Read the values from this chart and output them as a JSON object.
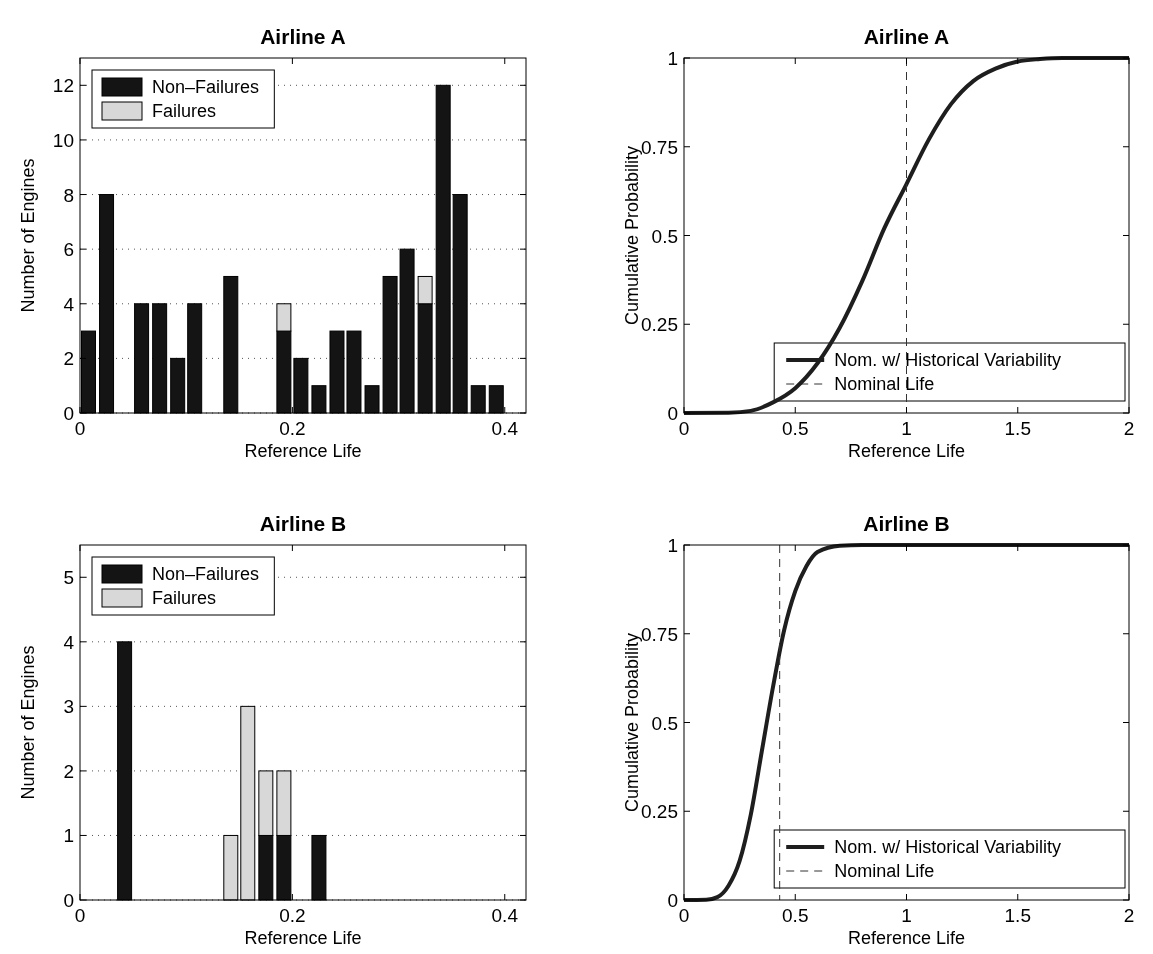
{
  "chart_data": [
    {
      "type": "bar",
      "title": "Airline A",
      "xlabel": "Reference Life",
      "ylabel": "Number of Engines",
      "stacked": true,
      "x": [
        0.008,
        0.025,
        0.042,
        0.058,
        0.075,
        0.092,
        0.108,
        0.125,
        0.142,
        0.158,
        0.175,
        0.192,
        0.208,
        0.225,
        0.242,
        0.258,
        0.275,
        0.292,
        0.308,
        0.325,
        0.342,
        0.358,
        0.375,
        0.392
      ],
      "series": [
        {
          "name": "Non–Failures",
          "color": "#141414",
          "values": [
            3,
            8,
            null,
            4,
            4,
            2,
            4,
            null,
            5,
            null,
            null,
            3,
            2,
            1,
            3,
            3,
            1,
            5,
            6,
            4,
            12,
            8,
            1,
            1
          ]
        },
        {
          "name": "Failures",
          "color": "#d8d8d8",
          "values": [
            null,
            null,
            null,
            null,
            null,
            null,
            null,
            null,
            null,
            null,
            null,
            1,
            null,
            null,
            null,
            null,
            null,
            null,
            null,
            1,
            null,
            null,
            null,
            null
          ]
        }
      ],
      "xlim": [
        0,
        0.42
      ],
      "xticks": [
        0,
        0.2,
        0.4
      ],
      "ylim": [
        0,
        13
      ],
      "yticks": [
        0,
        2,
        4,
        6,
        8,
        10,
        12
      ],
      "grid": "y",
      "legend": "top left"
    },
    {
      "type": "line",
      "title": "Airline A",
      "xlabel": "Reference Life",
      "ylabel": "Cumulative Probability",
      "series": [
        {
          "name": "Nom. w/ Historical Variability",
          "color": "#1e1e1e",
          "x": [
            0,
            0.2,
            0.3,
            0.4,
            0.5,
            0.6,
            0.7,
            0.8,
            0.9,
            1.0,
            1.1,
            1.2,
            1.3,
            1.4,
            1.5,
            1.6,
            1.7,
            2.0
          ],
          "values": [
            0,
            0.001,
            0.006,
            0.03,
            0.07,
            0.14,
            0.24,
            0.37,
            0.52,
            0.645,
            0.77,
            0.87,
            0.935,
            0.97,
            0.99,
            0.997,
            1,
            1
          ]
        }
      ],
      "ref_lines": [
        {
          "axis": "x",
          "value": 1,
          "label": "Nominal Life",
          "line_style": "dashed",
          "color": "#333333"
        }
      ],
      "xlim": [
        0,
        2
      ],
      "xticks": [
        0,
        0.5,
        1,
        1.5,
        2
      ],
      "ylim": [
        0,
        1
      ],
      "yticks": [
        0,
        0.25,
        0.5,
        0.75,
        1
      ],
      "grid": false,
      "legend": "bottom right",
      "line_style": "solid"
    },
    {
      "type": "bar",
      "title": "Airline B",
      "xlabel": "Reference Life",
      "ylabel": "Number of Engines",
      "stacked": true,
      "x": [
        0.042,
        0.142,
        0.158,
        0.175,
        0.192,
        0.225
      ],
      "series": [
        {
          "name": "Non–Failures",
          "color": "#141414",
          "values": [
            4,
            null,
            null,
            1,
            1,
            1
          ]
        },
        {
          "name": "Failures",
          "color": "#d8d8d8",
          "values": [
            null,
            1,
            3,
            1,
            1,
            null
          ]
        }
      ],
      "xlim": [
        0,
        0.42
      ],
      "xticks": [
        0,
        0.2,
        0.4
      ],
      "ylim": [
        0,
        5.5
      ],
      "yticks": [
        0,
        1,
        2,
        3,
        4,
        5
      ],
      "grid": "y",
      "legend": "top left"
    },
    {
      "type": "line",
      "title": "Airline B",
      "xlabel": "Reference Life",
      "ylabel": "Cumulative Probability",
      "series": [
        {
          "name": "Nom. w/ Historical Variability",
          "color": "#1e1e1e",
          "x": [
            0,
            0.1,
            0.15,
            0.2,
            0.25,
            0.3,
            0.35,
            0.4,
            0.45,
            0.5,
            0.55,
            0.6,
            0.7,
            0.8,
            2.0
          ],
          "values": [
            0,
            0.001,
            0.008,
            0.04,
            0.11,
            0.24,
            0.42,
            0.6,
            0.76,
            0.87,
            0.94,
            0.98,
            0.998,
            1,
            1
          ]
        }
      ],
      "ref_lines": [
        {
          "axis": "x",
          "value": 0.43,
          "label": "Nominal Life",
          "line_style": "dashed",
          "color": "#333333"
        }
      ],
      "xlim": [
        0,
        2
      ],
      "xticks": [
        0,
        0.5,
        1,
        1.5,
        2
      ],
      "ylim": [
        0,
        1
      ],
      "yticks": [
        0,
        0.25,
        0.5,
        0.75,
        1
      ],
      "grid": false,
      "legend": "bottom right",
      "line_style": "solid"
    }
  ]
}
